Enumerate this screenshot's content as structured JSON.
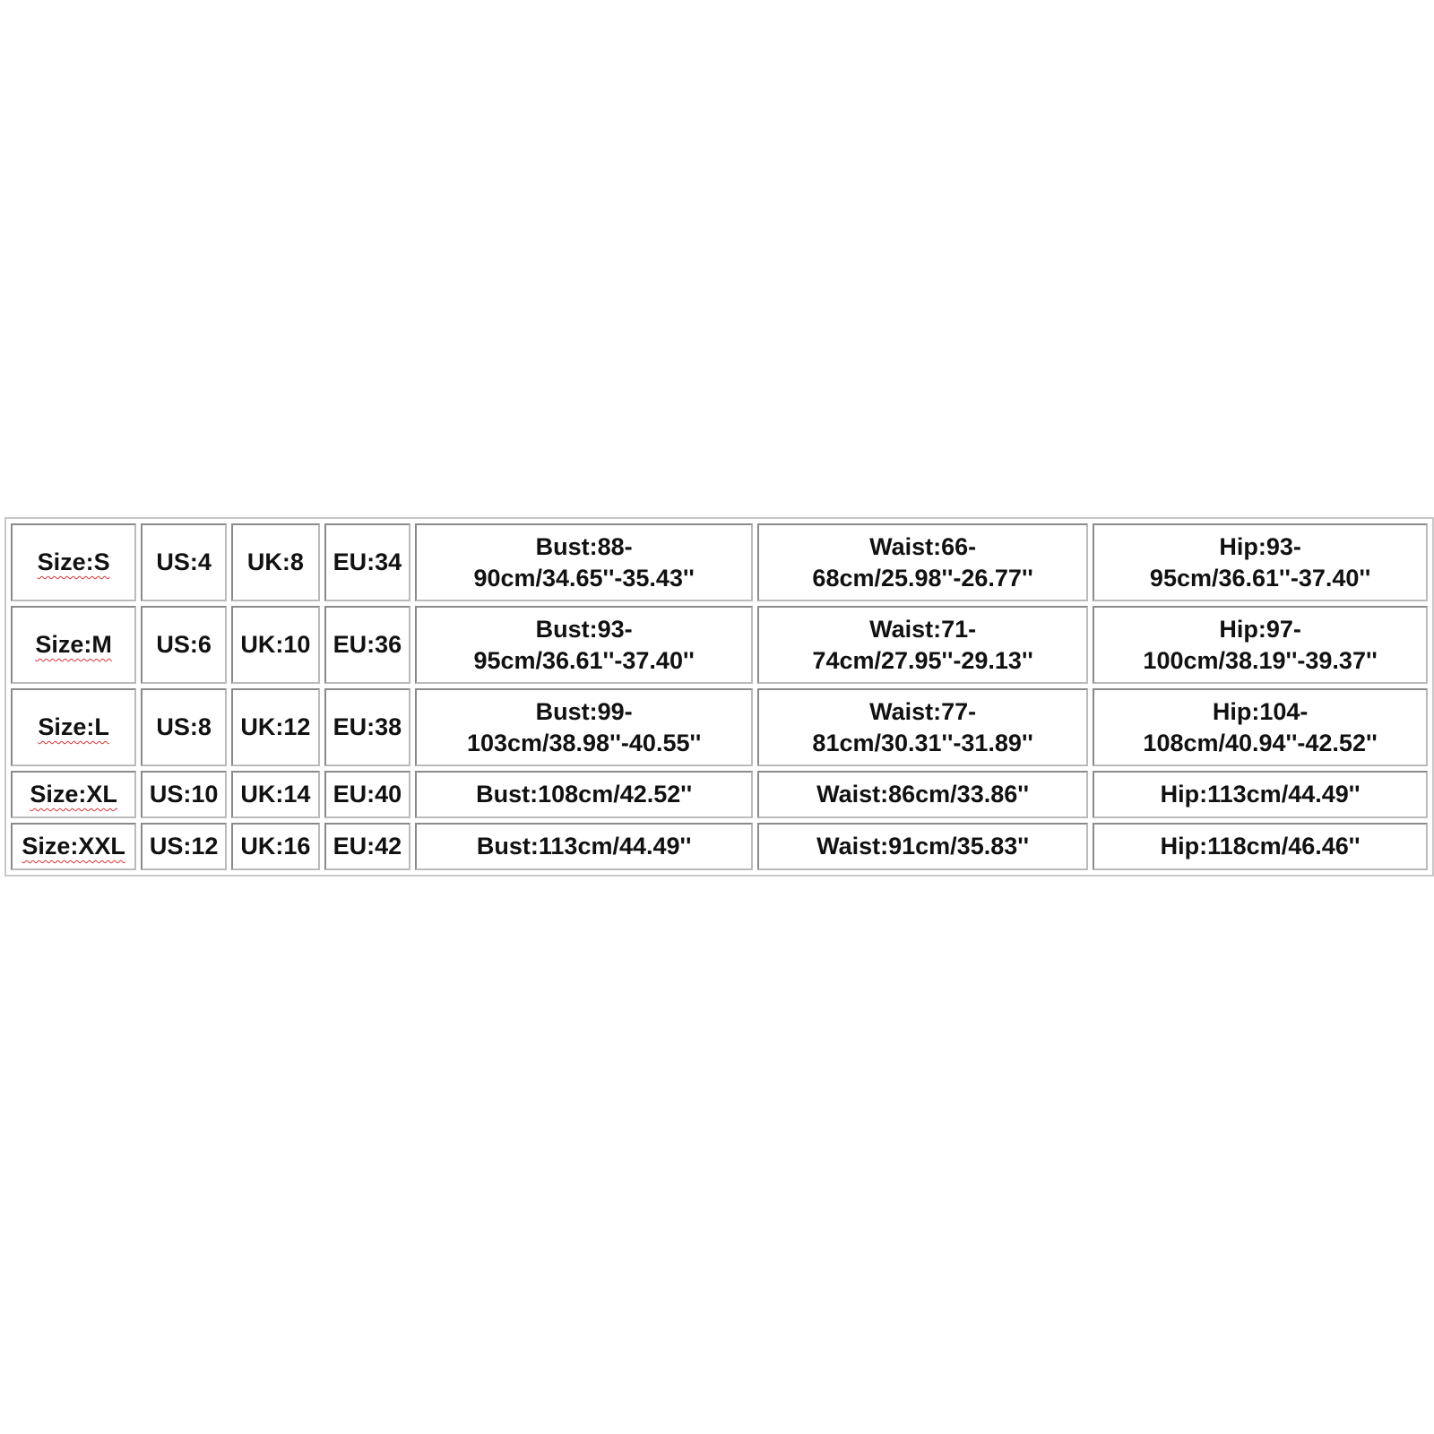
{
  "size_chart": {
    "rows": [
      [
        "Size:S",
        "US:4",
        "UK:8",
        "EU:34",
        "Bust:88-90cm/34.65''-35.43''",
        "Waist:66-68cm/25.98''-26.77''",
        "Hip:93-95cm/36.61''-37.40''"
      ],
      [
        "Size:M",
        "US:6",
        "UK:10",
        "EU:36",
        "Bust:93-95cm/36.61''-37.40''",
        "Waist:71-74cm/27.95''-29.13''",
        "Hip:97-100cm/38.19''-39.37''"
      ],
      [
        "Size:L",
        "US:8",
        "UK:12",
        "EU:38",
        "Bust:99-103cm/38.98''-40.55''",
        "Waist:77-81cm/30.31''-31.89''",
        "Hip:104-108cm/40.94''-42.52''"
      ],
      [
        "Size:XL",
        "US:10",
        "UK:14",
        "EU:40",
        "Bust:108cm/42.52''",
        "Waist:86cm/33.86''",
        "Hip:113cm/44.49''"
      ],
      [
        "Size:XXL",
        "US:12",
        "UK:16",
        "EU:42",
        "Bust:113cm/44.49''",
        "Waist:91cm/35.83''",
        "Hip:118cm/46.46''"
      ]
    ]
  }
}
